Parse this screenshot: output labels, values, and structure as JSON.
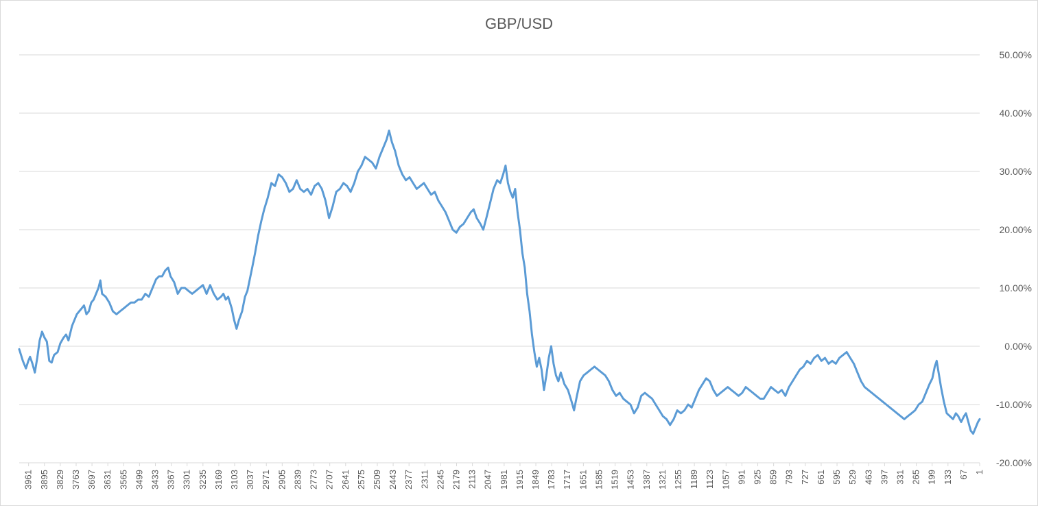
{
  "chart_data": {
    "type": "line",
    "title": "GBP/USD",
    "xlabel": "",
    "ylabel": "",
    "x_reversed": true,
    "x_range": [
      4000,
      1
    ],
    "ylim": [
      -20,
      50
    ],
    "y_tick_labels": [
      "50.00%",
      "40.00%",
      "30.00%",
      "20.00%",
      "10.00%",
      "0.00%",
      "-10.00%",
      "-20.00%"
    ],
    "y_tick_values": [
      50,
      40,
      30,
      20,
      10,
      0,
      -10,
      -20
    ],
    "x_tick_labels": [
      "3961",
      "3895",
      "3829",
      "3763",
      "3697",
      "3631",
      "3565",
      "3499",
      "3433",
      "3367",
      "3301",
      "3235",
      "3169",
      "3103",
      "3037",
      "2971",
      "2905",
      "2839",
      "2773",
      "2707",
      "2641",
      "2575",
      "2509",
      "2443",
      "2377",
      "2311",
      "2245",
      "2179",
      "2113",
      "2047",
      "1981",
      "1915",
      "1849",
      "1783",
      "1717",
      "1651",
      "1585",
      "1519",
      "1453",
      "1387",
      "1321",
      "1255",
      "1189",
      "1123",
      "1057",
      "991",
      "925",
      "859",
      "793",
      "727",
      "661",
      "595",
      "529",
      "463",
      "397",
      "331",
      "265",
      "199",
      "133",
      "67",
      "1"
    ],
    "grid": "horizontal",
    "legend": "none",
    "line_color": "#5b9bd5",
    "series": [
      {
        "values_unit": "percent",
        "points": [
          [
            4000,
            -0.5
          ],
          [
            3985,
            -2.5
          ],
          [
            3972,
            -3.8
          ],
          [
            3962,
            -2.5
          ],
          [
            3955,
            -1.8
          ],
          [
            3945,
            -3.0
          ],
          [
            3935,
            -4.5
          ],
          [
            3925,
            -2.0
          ],
          [
            3915,
            1.0
          ],
          [
            3905,
            2.5
          ],
          [
            3895,
            1.5
          ],
          [
            3885,
            0.8
          ],
          [
            3875,
            -2.5
          ],
          [
            3865,
            -2.8
          ],
          [
            3855,
            -1.5
          ],
          [
            3840,
            -1.0
          ],
          [
            3829,
            0.5
          ],
          [
            3815,
            1.5
          ],
          [
            3805,
            2.0
          ],
          [
            3795,
            1.0
          ],
          [
            3780,
            3.5
          ],
          [
            3770,
            4.5
          ],
          [
            3760,
            5.5
          ],
          [
            3750,
            6.0
          ],
          [
            3740,
            6.5
          ],
          [
            3730,
            7.0
          ],
          [
            3720,
            5.5
          ],
          [
            3710,
            6.0
          ],
          [
            3700,
            7.5
          ],
          [
            3690,
            8.0
          ],
          [
            3680,
            9.0
          ],
          [
            3670,
            10.0
          ],
          [
            3662,
            11.3
          ],
          [
            3655,
            9.0
          ],
          [
            3640,
            8.5
          ],
          [
            3625,
            7.5
          ],
          [
            3610,
            6.0
          ],
          [
            3595,
            5.5
          ],
          [
            3580,
            6.0
          ],
          [
            3565,
            6.5
          ],
          [
            3550,
            7.0
          ],
          [
            3535,
            7.5
          ],
          [
            3520,
            7.5
          ],
          [
            3505,
            8.0
          ],
          [
            3490,
            8.0
          ],
          [
            3475,
            9.0
          ],
          [
            3460,
            8.5
          ],
          [
            3445,
            10.0
          ],
          [
            3430,
            11.5
          ],
          [
            3418,
            12.0
          ],
          [
            3405,
            12.0
          ],
          [
            3392,
            13.0
          ],
          [
            3380,
            13.5
          ],
          [
            3370,
            12.0
          ],
          [
            3355,
            11.0
          ],
          [
            3340,
            9.0
          ],
          [
            3325,
            10.0
          ],
          [
            3310,
            10.0
          ],
          [
            3295,
            9.5
          ],
          [
            3280,
            9.0
          ],
          [
            3265,
            9.5
          ],
          [
            3250,
            10.0
          ],
          [
            3235,
            10.5
          ],
          [
            3220,
            9.0
          ],
          [
            3205,
            10.5
          ],
          [
            3190,
            9.0
          ],
          [
            3175,
            8.0
          ],
          [
            3160,
            8.5
          ],
          [
            3150,
            9.0
          ],
          [
            3140,
            8.0
          ],
          [
            3130,
            8.5
          ],
          [
            3115,
            6.5
          ],
          [
            3105,
            4.5
          ],
          [
            3095,
            3.0
          ],
          [
            3085,
            4.5
          ],
          [
            3072,
            6.0
          ],
          [
            3060,
            8.5
          ],
          [
            3050,
            9.5
          ],
          [
            3040,
            11.5
          ],
          [
            3030,
            13.5
          ],
          [
            3018,
            16.0
          ],
          [
            3005,
            19.0
          ],
          [
            2992,
            21.5
          ],
          [
            2980,
            23.5
          ],
          [
            2965,
            25.5
          ],
          [
            2950,
            28.0
          ],
          [
            2935,
            27.5
          ],
          [
            2920,
            29.5
          ],
          [
            2905,
            29.0
          ],
          [
            2890,
            28.0
          ],
          [
            2875,
            26.5
          ],
          [
            2860,
            27.0
          ],
          [
            2845,
            28.5
          ],
          [
            2830,
            27.0
          ],
          [
            2815,
            26.5
          ],
          [
            2800,
            27.0
          ],
          [
            2785,
            26.0
          ],
          [
            2770,
            27.5
          ],
          [
            2755,
            28.0
          ],
          [
            2740,
            27.0
          ],
          [
            2725,
            25.0
          ],
          [
            2710,
            22.0
          ],
          [
            2695,
            24.0
          ],
          [
            2680,
            26.5
          ],
          [
            2665,
            27.0
          ],
          [
            2650,
            28.0
          ],
          [
            2635,
            27.5
          ],
          [
            2620,
            26.5
          ],
          [
            2605,
            28.0
          ],
          [
            2590,
            30.0
          ],
          [
            2575,
            31.0
          ],
          [
            2560,
            32.5
          ],
          [
            2545,
            32.0
          ],
          [
            2530,
            31.5
          ],
          [
            2515,
            30.5
          ],
          [
            2500,
            32.5
          ],
          [
            2485,
            34.0
          ],
          [
            2470,
            35.5
          ],
          [
            2460,
            37.0
          ],
          [
            2448,
            35.0
          ],
          [
            2435,
            33.5
          ],
          [
            2420,
            31.0
          ],
          [
            2405,
            29.5
          ],
          [
            2390,
            28.5
          ],
          [
            2375,
            29.0
          ],
          [
            2360,
            28.0
          ],
          [
            2345,
            27.0
          ],
          [
            2330,
            27.5
          ],
          [
            2315,
            28.0
          ],
          [
            2300,
            27.0
          ],
          [
            2285,
            26.0
          ],
          [
            2270,
            26.5
          ],
          [
            2255,
            25.0
          ],
          [
            2240,
            24.0
          ],
          [
            2225,
            23.0
          ],
          [
            2210,
            21.5
          ],
          [
            2195,
            20.0
          ],
          [
            2180,
            19.5
          ],
          [
            2165,
            20.5
          ],
          [
            2150,
            21.0
          ],
          [
            2135,
            22.0
          ],
          [
            2120,
            23.0
          ],
          [
            2108,
            23.5
          ],
          [
            2095,
            22.0
          ],
          [
            2080,
            21.0
          ],
          [
            2068,
            20.0
          ],
          [
            2055,
            22.0
          ],
          [
            2040,
            24.5
          ],
          [
            2025,
            27.0
          ],
          [
            2010,
            28.5
          ],
          [
            1997,
            28.0
          ],
          [
            1985,
            29.5
          ],
          [
            1975,
            31.0
          ],
          [
            1965,
            28.0
          ],
          [
            1955,
            26.5
          ],
          [
            1945,
            25.5
          ],
          [
            1935,
            27.0
          ],
          [
            1925,
            23.0
          ],
          [
            1915,
            20.0
          ],
          [
            1905,
            16.0
          ],
          [
            1895,
            13.5
          ],
          [
            1885,
            9.0
          ],
          [
            1875,
            6.0
          ],
          [
            1865,
            2.0
          ],
          [
            1855,
            -1.0
          ],
          [
            1845,
            -3.5
          ],
          [
            1835,
            -2.0
          ],
          [
            1825,
            -4.0
          ],
          [
            1815,
            -7.5
          ],
          [
            1805,
            -5.0
          ],
          [
            1795,
            -2.0
          ],
          [
            1785,
            0.0
          ],
          [
            1775,
            -3.0
          ],
          [
            1765,
            -5.0
          ],
          [
            1755,
            -6.0
          ],
          [
            1745,
            -4.5
          ],
          [
            1730,
            -6.5
          ],
          [
            1715,
            -7.5
          ],
          [
            1700,
            -9.5
          ],
          [
            1690,
            -11.0
          ],
          [
            1678,
            -8.5
          ],
          [
            1665,
            -6.0
          ],
          [
            1650,
            -5.0
          ],
          [
            1635,
            -4.5
          ],
          [
            1620,
            -4.0
          ],
          [
            1605,
            -3.5
          ],
          [
            1590,
            -4.0
          ],
          [
            1575,
            -4.5
          ],
          [
            1560,
            -5.0
          ],
          [
            1545,
            -6.0
          ],
          [
            1530,
            -7.5
          ],
          [
            1515,
            -8.5
          ],
          [
            1500,
            -8.0
          ],
          [
            1485,
            -9.0
          ],
          [
            1470,
            -9.5
          ],
          [
            1455,
            -10.0
          ],
          [
            1440,
            -11.5
          ],
          [
            1425,
            -10.5
          ],
          [
            1410,
            -8.5
          ],
          [
            1395,
            -8.0
          ],
          [
            1380,
            -8.5
          ],
          [
            1365,
            -9.0
          ],
          [
            1350,
            -10.0
          ],
          [
            1335,
            -11.0
          ],
          [
            1320,
            -12.0
          ],
          [
            1305,
            -12.5
          ],
          [
            1290,
            -13.5
          ],
          [
            1275,
            -12.5
          ],
          [
            1260,
            -11.0
          ],
          [
            1245,
            -11.5
          ],
          [
            1230,
            -11.0
          ],
          [
            1215,
            -10.0
          ],
          [
            1200,
            -10.5
          ],
          [
            1185,
            -9.0
          ],
          [
            1170,
            -7.5
          ],
          [
            1155,
            -6.5
          ],
          [
            1140,
            -5.5
          ],
          [
            1125,
            -6.0
          ],
          [
            1110,
            -7.5
          ],
          [
            1095,
            -8.5
          ],
          [
            1080,
            -8.0
          ],
          [
            1065,
            -7.5
          ],
          [
            1050,
            -7.0
          ],
          [
            1035,
            -7.5
          ],
          [
            1020,
            -8.0
          ],
          [
            1005,
            -8.5
          ],
          [
            990,
            -8.0
          ],
          [
            975,
            -7.0
          ],
          [
            960,
            -7.5
          ],
          [
            945,
            -8.0
          ],
          [
            930,
            -8.5
          ],
          [
            915,
            -9.0
          ],
          [
            900,
            -9.0
          ],
          [
            885,
            -8.0
          ],
          [
            870,
            -7.0
          ],
          [
            855,
            -7.5
          ],
          [
            840,
            -8.0
          ],
          [
            825,
            -7.5
          ],
          [
            810,
            -8.5
          ],
          [
            795,
            -7.0
          ],
          [
            780,
            -6.0
          ],
          [
            765,
            -5.0
          ],
          [
            750,
            -4.0
          ],
          [
            735,
            -3.5
          ],
          [
            720,
            -2.5
          ],
          [
            705,
            -3.0
          ],
          [
            690,
            -2.0
          ],
          [
            675,
            -1.5
          ],
          [
            660,
            -2.5
          ],
          [
            645,
            -2.0
          ],
          [
            630,
            -3.0
          ],
          [
            615,
            -2.5
          ],
          [
            600,
            -3.0
          ],
          [
            585,
            -2.0
          ],
          [
            570,
            -1.5
          ],
          [
            555,
            -1.0
          ],
          [
            540,
            -2.0
          ],
          [
            525,
            -3.0
          ],
          [
            510,
            -4.5
          ],
          [
            495,
            -6.0
          ],
          [
            480,
            -7.0
          ],
          [
            465,
            -7.5
          ],
          [
            450,
            -8.0
          ],
          [
            435,
            -8.5
          ],
          [
            420,
            -9.0
          ],
          [
            405,
            -9.5
          ],
          [
            390,
            -10.0
          ],
          [
            375,
            -10.5
          ],
          [
            360,
            -11.0
          ],
          [
            345,
            -11.5
          ],
          [
            330,
            -12.0
          ],
          [
            315,
            -12.5
          ],
          [
            300,
            -12.0
          ],
          [
            285,
            -11.5
          ],
          [
            270,
            -11.0
          ],
          [
            255,
            -10.0
          ],
          [
            240,
            -9.5
          ],
          [
            225,
            -8.0
          ],
          [
            210,
            -6.5
          ],
          [
            198,
            -5.5
          ],
          [
            188,
            -3.5
          ],
          [
            180,
            -2.5
          ],
          [
            172,
            -4.5
          ],
          [
            162,
            -7.0
          ],
          [
            150,
            -9.5
          ],
          [
            138,
            -11.5
          ],
          [
            125,
            -12.0
          ],
          [
            112,
            -12.5
          ],
          [
            100,
            -11.5
          ],
          [
            90,
            -12.0
          ],
          [
            78,
            -13.0
          ],
          [
            66,
            -12.0
          ],
          [
            58,
            -11.5
          ],
          [
            48,
            -13.0
          ],
          [
            38,
            -14.5
          ],
          [
            28,
            -15.0
          ],
          [
            18,
            -14.0
          ],
          [
            8,
            -13.0
          ],
          [
            1,
            -12.5
          ]
        ]
      }
    ]
  }
}
